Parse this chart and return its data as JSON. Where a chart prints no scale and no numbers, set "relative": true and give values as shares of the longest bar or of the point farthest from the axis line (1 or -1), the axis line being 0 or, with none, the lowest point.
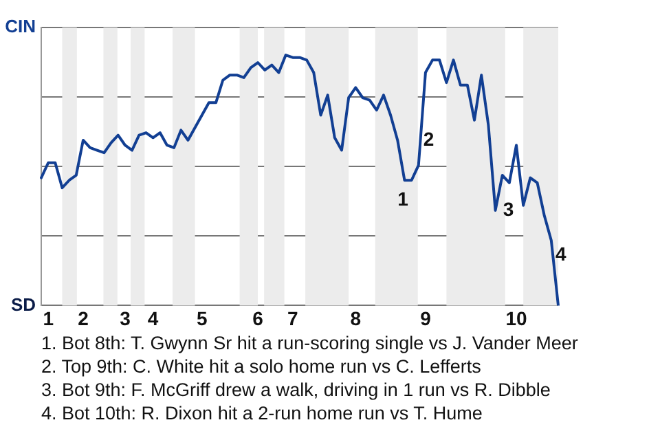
{
  "chart_data": {
    "type": "line",
    "relative": true,
    "categories": [
      null,
      "1",
      null,
      null,
      null,
      null,
      "2",
      null,
      null,
      null,
      null,
      null,
      "3",
      null,
      null,
      null,
      "4",
      null,
      null,
      null,
      null,
      null,
      null,
      "5",
      null,
      null,
      null,
      null,
      null,
      null,
      null,
      "6",
      null,
      null,
      null,
      null,
      "7",
      null,
      null,
      null,
      null,
      null,
      null,
      null,
      null,
      "8",
      null,
      null,
      null,
      null,
      null,
      null,
      null,
      null,
      null,
      "9",
      null,
      null,
      null,
      null,
      null,
      null,
      null,
      null,
      null,
      null,
      null,
      null,
      "10",
      null,
      null,
      null,
      null,
      null,
      null
    ],
    "series": [
      {
        "color": "#123f93",
        "values": [
          0.51,
          0.57,
          0.57,
          0.47,
          0.5,
          0.52,
          0.66,
          0.63,
          0.62,
          0.61,
          0.65,
          0.68,
          0.64,
          0.62,
          0.68,
          0.69,
          0.67,
          0.69,
          0.64,
          0.63,
          0.7,
          0.66,
          0.71,
          0.76,
          0.81,
          0.81,
          0.9,
          0.92,
          0.92,
          0.91,
          0.95,
          0.97,
          0.94,
          0.96,
          0.93,
          1,
          0.99,
          0.99,
          0.98,
          0.93,
          0.76,
          0.84,
          0.67,
          0.62,
          0.83,
          0.87,
          0.83,
          0.82,
          0.78,
          0.84,
          0.76,
          0.66,
          0.5,
          0.5,
          0.56,
          0.93,
          0.98,
          0.98,
          0.89,
          0.98,
          0.88,
          0.88,
          0.74,
          0.92,
          0.72,
          0.38,
          0.52,
          0.49,
          0.64,
          0.4,
          0.51,
          0.49,
          0.36,
          0.26,
          0
        ]
      }
    ],
    "grid": "y",
    "marker": "none",
    "line_style": "solid",
    "annotations": [
      "CIN",
      "SD",
      "1",
      "2",
      "3",
      "4",
      "1. Bot 8th: T. Gwynn Sr hit a run-scoring single vs J. Vander Meer",
      "2. Top 9th: C. White hit a solo home run vs C. Lefferts",
      "3. Bot 9th: F. McGriff drew a walk, driving in 1 run vs R. Dibble",
      "4. Bot 10th: R. Dixon hit a 2-run home run vs T. Hume"
    ]
  }
}
